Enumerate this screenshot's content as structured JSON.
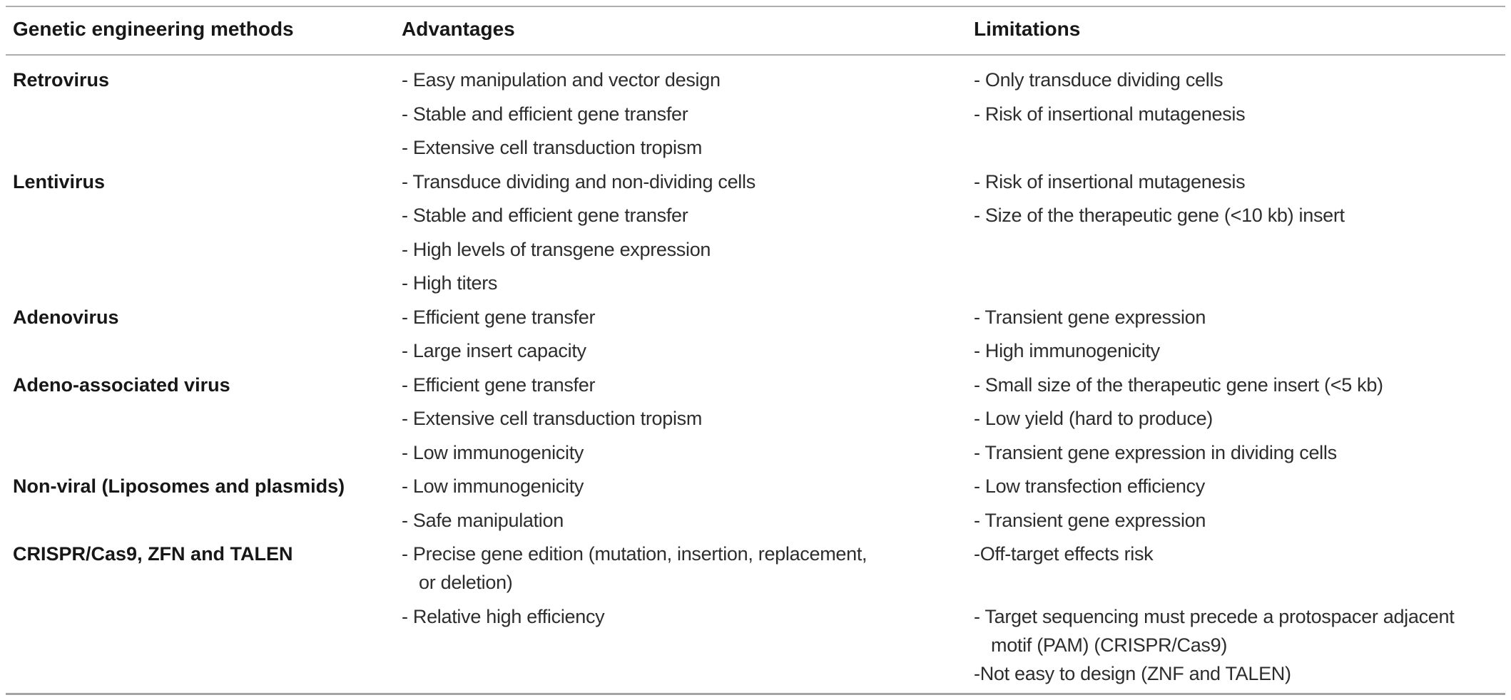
{
  "table": {
    "columns": [
      {
        "label": "Genetic engineering methods"
      },
      {
        "label": "Advantages"
      },
      {
        "label": "Limitations"
      }
    ],
    "rows": [
      {
        "method": "Retrovirus",
        "advantages": [
          "- Easy manipulation and vector design",
          "- Stable and efficient gene transfer",
          "- Extensive cell transduction tropism"
        ],
        "limitations": [
          "- Only transduce dividing cells",
          "- Risk of insertional mutagenesis"
        ]
      },
      {
        "method": "Lentivirus",
        "advantages": [
          "- Transduce dividing and non-dividing cells",
          "- Stable and efficient gene transfer",
          "- High levels of transgene expression",
          "- High titers"
        ],
        "limitations": [
          "- Risk of insertional mutagenesis",
          "- Size of the therapeutic gene (<10 kb) insert"
        ]
      },
      {
        "method": "Adenovirus",
        "advantages": [
          "- Efficient gene transfer",
          "- Large insert capacity"
        ],
        "limitations": [
          "- Transient gene expression",
          "- High immunogenicity"
        ]
      },
      {
        "method": "Adeno-associated virus",
        "advantages": [
          "- Efficient gene transfer",
          "- Extensive cell transduction tropism",
          "- Low immunogenicity"
        ],
        "limitations": [
          "- Small size of the therapeutic gene insert (<5 kb)",
          "- Low yield (hard to produce)",
          "- Transient gene expression in dividing cells"
        ]
      },
      {
        "method": "Non-viral (Liposomes and plasmids)",
        "advantages": [
          "- Low immunogenicity",
          "- Safe manipulation"
        ],
        "limitations": [
          "- Low transfection efficiency",
          "- Transient gene expression"
        ]
      },
      {
        "method": "CRISPR/Cas9, ZFN and TALEN",
        "advantages": [
          "- Precise gene edition (mutation, insertion, replacement,\nor deletion)",
          "- Relative high efficiency"
        ],
        "limitations": [
          "-Off-target effects risk",
          "- Target sequencing must precede a protospacer adjacent\nmotif (PAM) (CRISPR/Cas9)",
          "-Not easy to design (ZNF and TALEN)"
        ]
      }
    ]
  },
  "colors": {
    "rule": "#aeaeae",
    "text": "#2d2d2d",
    "heading_text": "#171717",
    "background": "#ffffff"
  }
}
